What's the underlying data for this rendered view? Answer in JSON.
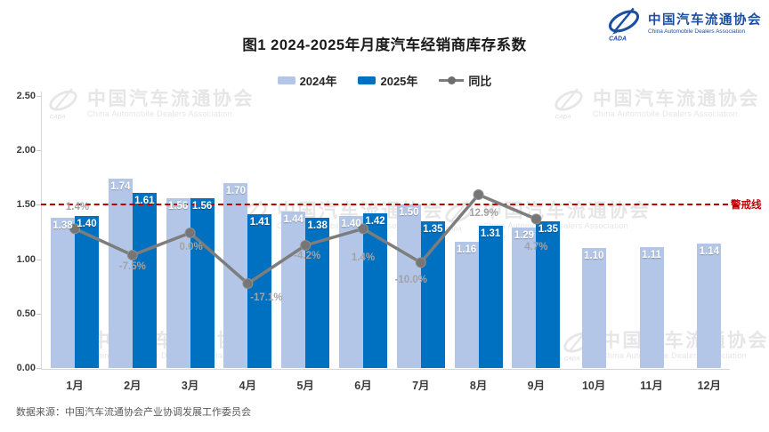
{
  "header": {
    "title": "图1  2024-2025年月度汽车经销商库存系数",
    "logo": {
      "zh": "中国汽车流通协会",
      "en": "China Automobile Dealers Association",
      "mark": "CADA"
    }
  },
  "legend": [
    {
      "label": "2024年",
      "color": "#b3c6e7",
      "kind": "bar-swatch"
    },
    {
      "label": "2025年",
      "color": "#0070c0",
      "kind": "bar-swatch"
    },
    {
      "label": "同比",
      "color": "#7d7d7d",
      "kind": "line-marker"
    }
  ],
  "chart_data": {
    "type": "bar",
    "subtype": "grouped bars with secondary-axis line",
    "title": "图1  2024-2025年月度汽车经销商库存系数",
    "categories": [
      "1月",
      "2月",
      "3月",
      "4月",
      "5月",
      "6月",
      "7月",
      "8月",
      "9月",
      "10月",
      "11月",
      "12月"
    ],
    "series": [
      {
        "name": "2024年",
        "type": "bar",
        "color": "#b3c6e7",
        "values": [
          1.38,
          1.74,
          1.56,
          1.7,
          1.44,
          1.4,
          1.5,
          1.16,
          1.29,
          1.1,
          1.11,
          1.14
        ]
      },
      {
        "name": "2025年",
        "type": "bar",
        "color": "#0070c0",
        "values": [
          1.4,
          1.61,
          1.56,
          1.41,
          1.38,
          1.42,
          1.35,
          1.31,
          1.35,
          null,
          null,
          null
        ]
      },
      {
        "name": "同比",
        "type": "line",
        "axis": "secondary",
        "color": "#7d7d7d",
        "values_pct": [
          1.4,
          -7.5,
          0.0,
          -17.1,
          -4.2,
          1.4,
          -10.0,
          12.9,
          4.7,
          null,
          null,
          null
        ],
        "labels": [
          "1.4%",
          "-7.5%",
          "0.0%",
          "-17.1%",
          "-4.2%",
          "1.4%",
          "-10.0%",
          "12.9%",
          "4.7%"
        ]
      }
    ],
    "y_axis": {
      "min": 0.0,
      "max": 2.5,
      "step": 0.5,
      "ticks": [
        "0.00",
        "0.50",
        "1.00",
        "1.50",
        "2.00",
        "2.50"
      ]
    },
    "reference_line": {
      "value": 1.5,
      "label": "警戒线",
      "color": "#c00000",
      "style": "dashed"
    },
    "grid": false,
    "legend_position": "top",
    "value_labels": "shown in white inside bar tops, two decimals"
  },
  "watermark": {
    "zh": "中国汽车流通协会",
    "en": "China Automobile Dealers Association"
  },
  "footer": {
    "source": "数据来源：中国汽车流通协会产业协调发展工作委员会"
  }
}
